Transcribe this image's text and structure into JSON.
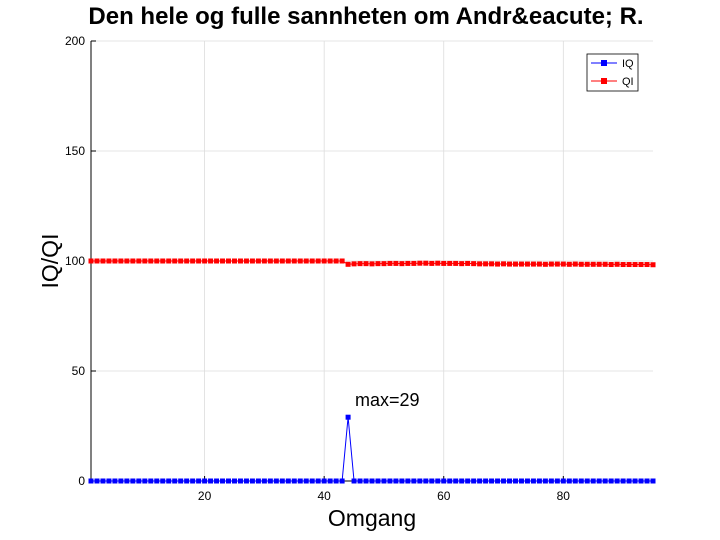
{
  "chart_data": {
    "type": "line",
    "title": "Den hele og fulle sannheten om Andr&eacute; R.",
    "xlabel": "Omgang",
    "ylabel": "IQ/QI",
    "xlim": [
      1,
      95
    ],
    "ylim": [
      0,
      200
    ],
    "xticks": [
      20,
      40,
      60,
      80
    ],
    "yticks": [
      0,
      50,
      100,
      150,
      200
    ],
    "grid": true,
    "legend_position": "top-right",
    "annotation": {
      "text": "max=29",
      "x": 44,
      "y": 29
    },
    "series": [
      {
        "name": "IQ",
        "color": "#0000ff",
        "marker": "square",
        "x_start": 1,
        "values": [
          0,
          0,
          0,
          0,
          0,
          0,
          0,
          0,
          0,
          0,
          0,
          0,
          0,
          0,
          0,
          0,
          0,
          0,
          0,
          0,
          0,
          0,
          0,
          0,
          0,
          0,
          0,
          0,
          0,
          0,
          0,
          0,
          0,
          0,
          0,
          0,
          0,
          0,
          0,
          0,
          0,
          0,
          0,
          29,
          0,
          0,
          0,
          0,
          0,
          0,
          0,
          0,
          0,
          0,
          0,
          0,
          0,
          0,
          0,
          0,
          0,
          0,
          0,
          0,
          0,
          0,
          0,
          0,
          0,
          0,
          0,
          0,
          0,
          0,
          0,
          0,
          0,
          0,
          0,
          0,
          0,
          0,
          0,
          0,
          0,
          0,
          0,
          0,
          0,
          0,
          0,
          0,
          0,
          0,
          0
        ]
      },
      {
        "name": "QI",
        "color": "#ff0000",
        "marker": "square",
        "x_start": 1,
        "values": [
          100,
          100,
          100,
          100,
          100,
          100,
          100,
          100,
          100,
          100,
          100,
          100,
          100,
          100,
          100,
          100,
          100,
          100,
          100,
          100,
          100,
          100,
          100,
          100,
          100,
          100,
          100,
          100,
          100,
          100,
          100,
          100,
          100,
          100,
          100,
          100,
          100,
          100,
          100,
          100,
          100,
          100,
          100,
          98.5,
          98.7,
          98.8,
          98.8,
          98.7,
          98.8,
          98.8,
          98.9,
          98.9,
          98.8,
          98.9,
          98.9,
          99,
          99,
          98.9,
          99,
          98.9,
          98.9,
          98.9,
          98.8,
          98.9,
          98.8,
          98.7,
          98.7,
          98.7,
          98.6,
          98.7,
          98.6,
          98.6,
          98.6,
          98.6,
          98.6,
          98.6,
          98.5,
          98.6,
          98.6,
          98.6,
          98.5,
          98.6,
          98.5,
          98.5,
          98.5,
          98.5,
          98.5,
          98.4,
          98.5,
          98.4,
          98.4,
          98.4,
          98.4,
          98.4,
          98.3
        ]
      }
    ]
  }
}
